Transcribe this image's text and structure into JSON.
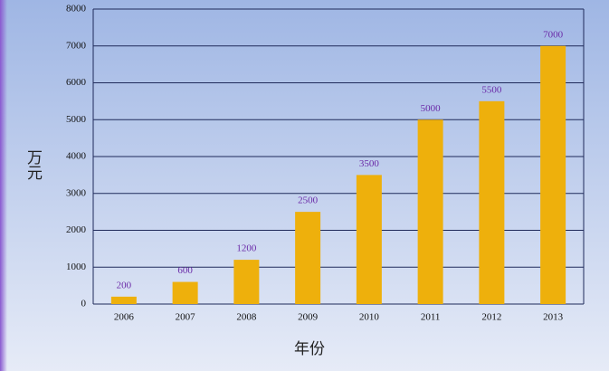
{
  "chart_data": {
    "type": "bar",
    "y_label": "万元",
    "x_label": "年份",
    "categories": [
      "2006",
      "2007",
      "2008",
      "2009",
      "2010",
      "2011",
      "2012",
      "2013"
    ],
    "values": [
      200,
      600,
      1200,
      2500,
      3500,
      5000,
      5500,
      7000
    ],
    "color": "#eeb00c",
    "ylim": [
      0,
      8000
    ],
    "yticks": [
      0,
      1000,
      2000,
      3000,
      4000,
      5000,
      6000,
      7000,
      8000
    ],
    "grid": true
  }
}
